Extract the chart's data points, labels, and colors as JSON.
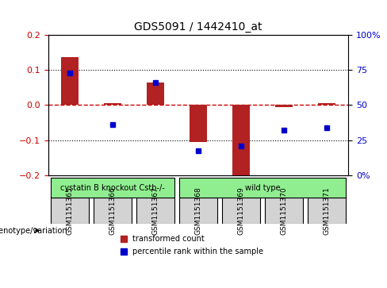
{
  "title": "GDS5091 / 1442410_at",
  "samples": [
    "GSM1151365",
    "GSM1151366",
    "GSM1151367",
    "GSM1151368",
    "GSM1151369",
    "GSM1151370",
    "GSM1151371"
  ],
  "bar_values": [
    0.135,
    0.005,
    0.065,
    -0.105,
    -0.21,
    -0.005,
    0.005
  ],
  "dot_values": [
    0.09,
    -0.055,
    0.065,
    -0.13,
    -0.115,
    -0.07,
    -0.065
  ],
  "ylim": [
    -0.2,
    0.2
  ],
  "yticks_left": [
    -0.2,
    -0.1,
    0.0,
    0.1,
    0.2
  ],
  "yticks_right": [
    0,
    25,
    50,
    75,
    100
  ],
  "yticks_right_vals": [
    -0.2,
    -0.1,
    0.0,
    0.1,
    0.2
  ],
  "bar_color": "#b22222",
  "dot_color": "#0000cd",
  "hline_color": "#cc0000",
  "grid_color": "#000000",
  "groups": [
    {
      "label": "cystatin B knockout Cstb-/-",
      "samples": [
        0,
        1,
        2
      ],
      "color": "#90ee90"
    },
    {
      "label": "wild type",
      "samples": [
        3,
        4,
        5,
        6
      ],
      "color": "#90ee90"
    }
  ],
  "legend_items": [
    {
      "label": "transformed count",
      "color": "#b22222",
      "marker": "s"
    },
    {
      "label": "percentile rank within the sample",
      "color": "#0000cd",
      "marker": "s"
    }
  ],
  "genotype_label": "genotype/variation",
  "figsize": [
    4.88,
    3.63
  ],
  "dpi": 100
}
